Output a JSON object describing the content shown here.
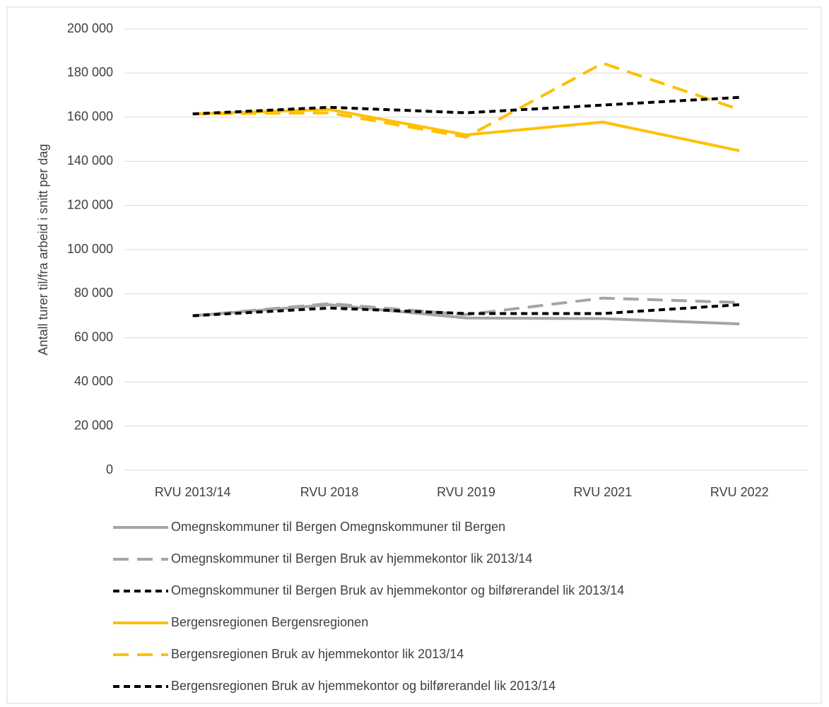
{
  "chart_data": {
    "type": "line",
    "y_label": "Antall turer til/fra arbeid i snitt per dag",
    "categories": [
      "RVU 2013/14",
      "RVU 2018",
      "RVU 2019",
      "RVU 2021",
      "RVU 2022"
    ],
    "series": [
      {
        "name": "Omegnskommuner til Bergen Omegnskommuner til Bergen",
        "color": "#a5a5a5",
        "dash": "solid",
        "values": [
          70000,
          75000,
          69000,
          68700,
          66300
        ]
      },
      {
        "name": "Omegnskommuner til Bergen Bruk av hjemmekontor lik 2013/14",
        "color": "#a5a5a5",
        "dash": "long",
        "values": [
          70000,
          75500,
          70500,
          78000,
          76000
        ]
      },
      {
        "name": "Omegnskommuner til Bergen Bruk av hjemmekontor og bilførerandel lik 2013/14",
        "color": "#000000",
        "dash": "short",
        "values": [
          70000,
          73500,
          71000,
          71000,
          75000
        ]
      },
      {
        "name": "Bergensregionen Bergensregionen",
        "color": "#ffc000",
        "dash": "solid",
        "values": [
          161500,
          163500,
          152000,
          157800,
          144800
        ]
      },
      {
        "name": "Bergensregionen Bruk av hjemmekontor lik 2013/14",
        "color": "#ffc000",
        "dash": "long",
        "values": [
          161500,
          162000,
          151000,
          184500,
          163500
        ]
      },
      {
        "name": "Bergensregionen Bruk av hjemmekontor og bilførerandel lik 2013/14",
        "color": "#000000",
        "dash": "short",
        "values": [
          161500,
          164500,
          162000,
          165500,
          169000
        ]
      }
    ],
    "ylim": [
      0,
      200000
    ],
    "yticks": [
      0,
      {
        "value": 20000,
        "label": "20 000"
      },
      {
        "value": 40000,
        "label": "40 000"
      },
      {
        "value": 60000,
        "label": "60 000"
      },
      {
        "value": 80000,
        "label": "80 000"
      },
      {
        "value": 100000,
        "label": "100 000"
      },
      {
        "value": 120000,
        "label": "120 000"
      },
      {
        "value": 140000,
        "label": "140 000"
      },
      {
        "value": 160000,
        "label": "160 000"
      },
      {
        "value": 180000,
        "label": "180 000"
      },
      {
        "value": 200000,
        "label": "200 000"
      }
    ],
    "grid": true,
    "legend": "bottom"
  }
}
